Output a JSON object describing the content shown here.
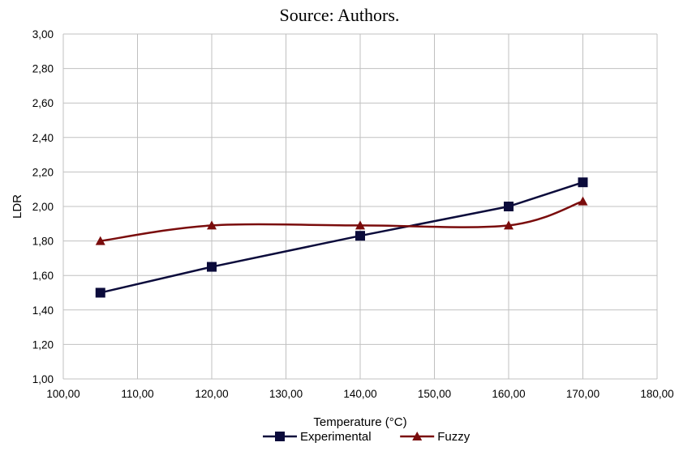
{
  "caption": "Source: Authors.",
  "colors": {
    "experimental": "#0b0b3b",
    "fuzzy": "#7a0c0c",
    "grid": "#c0c0c0"
  },
  "chart_data": {
    "type": "line",
    "xlabel": "Temperature (°C)",
    "ylabel": "LDR",
    "xlim": [
      100,
      180
    ],
    "ylim": [
      1.0,
      3.0
    ],
    "x_ticks": [
      "100,00",
      "110,00",
      "120,00",
      "130,00",
      "140,00",
      "150,00",
      "160,00",
      "170,00",
      "180,00"
    ],
    "y_ticks": [
      "1,00",
      "1,20",
      "1,40",
      "1,60",
      "1,80",
      "2,00",
      "2,20",
      "2,40",
      "2,60",
      "2,80",
      "3,00"
    ],
    "grid": true,
    "legend_position": "bottom",
    "series": [
      {
        "name": "Experimental",
        "marker": "square",
        "smooth": false,
        "x": [
          105,
          120,
          140,
          160,
          170
        ],
        "y": [
          1.5,
          1.65,
          1.83,
          2.0,
          2.14
        ]
      },
      {
        "name": "Fuzzy",
        "marker": "triangle",
        "smooth": true,
        "x": [
          105,
          120,
          140,
          160,
          170
        ],
        "y": [
          1.8,
          1.89,
          1.89,
          1.89,
          2.03
        ]
      }
    ]
  }
}
